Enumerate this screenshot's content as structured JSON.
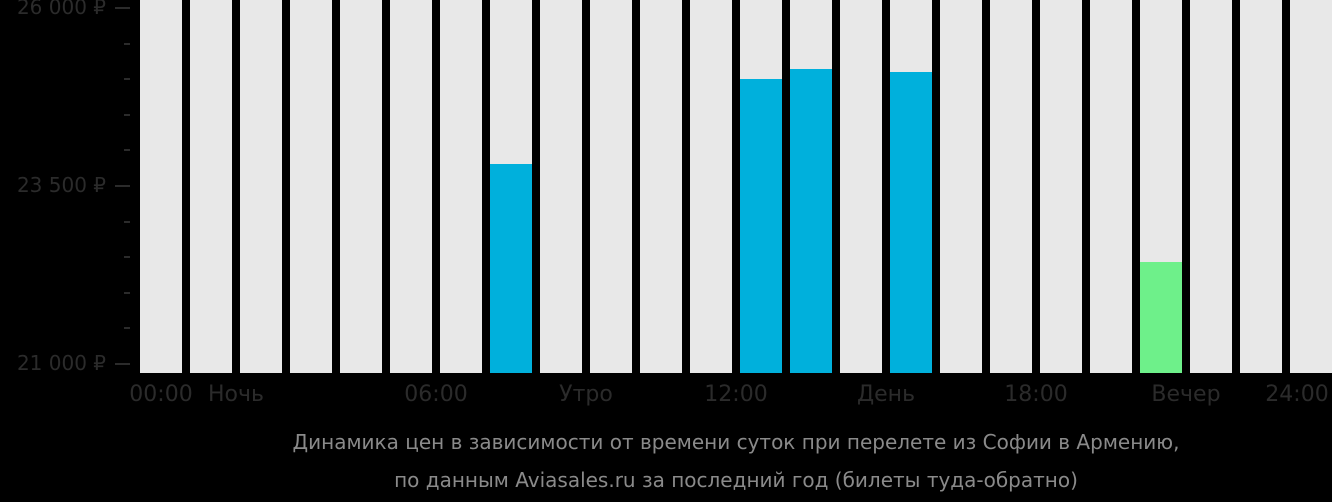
{
  "chart_data": {
    "type": "bar",
    "title": "Динамика цен в зависимости от времени суток при перелете из Софии в Армению, по данным Aviasales.ru за последний год (билеты туда-обратно)",
    "xlabel": "",
    "ylabel": "",
    "ylim": [
      21000,
      26000
    ],
    "grid": false,
    "legend": null,
    "categories": [
      "00",
      "01",
      "02",
      "03",
      "04",
      "05",
      "06",
      "07",
      "08",
      "09",
      "10",
      "11",
      "12",
      "13",
      "14",
      "15",
      "16",
      "17",
      "18",
      "19",
      "20",
      "21",
      "22",
      "23"
    ],
    "values": [
      null,
      null,
      null,
      null,
      null,
      null,
      null,
      23810,
      null,
      null,
      null,
      null,
      25000,
      25140,
      null,
      25100,
      null,
      null,
      null,
      null,
      22430,
      null,
      null,
      null
    ],
    "bar_colors": {
      "default": "#00b0dc",
      "cheapest": "#6ef08a",
      "empty": "#e8e8e8"
    },
    "cheapest_index": 20,
    "y_ticks": [
      {
        "value": 26000,
        "label": "26 000 ₽"
      },
      {
        "value": 23500,
        "label": "23 500 ₽"
      },
      {
        "value": 21000,
        "label": "21 000 ₽"
      }
    ],
    "x_tick_labels": [
      {
        "pos": 0,
        "label": "00:00"
      },
      {
        "pos": 2,
        "label": "Ночь"
      },
      {
        "pos": 6,
        "label": "06:00"
      },
      {
        "pos": 9,
        "label": "Утро"
      },
      {
        "pos": 12,
        "label": "12:00"
      },
      {
        "pos": 15,
        "label": "День"
      },
      {
        "pos": 18,
        "label": "18:00"
      },
      {
        "pos": 21,
        "label": "Вечер"
      },
      {
        "pos": 24,
        "label": "24:00"
      }
    ]
  },
  "caption": {
    "line1": "Динамика цен в зависимости от времени суток при перелете из Софии в Армению,",
    "line2": "по данным Aviasales.ru за последний год (билеты туда-обратно)"
  }
}
